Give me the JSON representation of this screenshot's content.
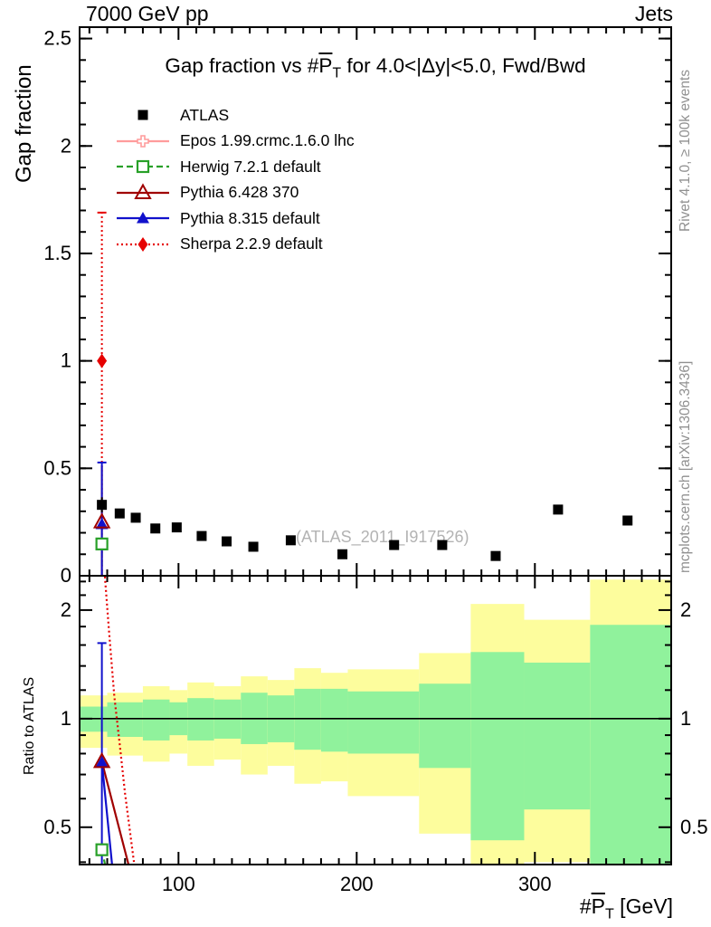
{
  "header": {
    "beam": "7000 GeV pp",
    "topic": "Jets"
  },
  "panel_title": {
    "pre": "Gap fraction vs #",
    "sym": "P",
    "sub": "T",
    "post": " for 4.0<|Δy|<5.0, Fwd/Bwd"
  },
  "x_label": {
    "pre": "#",
    "sym": "P",
    "sub": "T",
    "post": " [GeV]"
  },
  "y_label_top": "Gap fraction",
  "y_label_ratio": "Ratio to ATLAS",
  "side_text_top": "Rivet 4.1.0, ≥ 100k events",
  "side_text_bottom": "mcplots.cern.ch [arXiv:1306.3436]",
  "watermark": "(ATLAS_2011_I917526)",
  "colors": {
    "atlas": "#000000",
    "epos": "#ff9c9c",
    "herwig": "#28a028",
    "pythia6": "#a00000",
    "pythia8": "#1111cc",
    "sherpa": "#e60000",
    "band_yellow": "#fdfd9d",
    "band_green": "#90f29c",
    "frame": "#000000",
    "side_text": "#909090",
    "watermark": "#b3b3b3"
  },
  "legend": [
    {
      "label": "ATLAS",
      "color": "#000000",
      "line": "none",
      "marker": "square-filled"
    },
    {
      "label": "Epos 1.99.crmc.1.6.0 lhc",
      "color": "#ff9c9c",
      "line": "solid",
      "marker": "cross-open"
    },
    {
      "label": "Herwig 7.2.1 default",
      "color": "#28a028",
      "line": "dashed",
      "marker": "square-open"
    },
    {
      "label": "Pythia 6.428 370",
      "color": "#a00000",
      "line": "solid",
      "marker": "triangle-open"
    },
    {
      "label": "Pythia 8.315 default",
      "color": "#1111cc",
      "line": "solid",
      "marker": "triangle-filled"
    },
    {
      "label": "Sherpa 2.2.9 default",
      "color": "#e60000",
      "line": "dotted",
      "marker": "diamond-filled"
    }
  ],
  "chart_data": {
    "type": "scatter",
    "title": "Gap fraction vs #PT for 4.0<|dy|<5.0, Fwd/Bwd",
    "xlabel": "#PT [GeV]",
    "x_axis": {
      "lim": [
        44.5,
        376.5
      ],
      "major": [
        {
          "v": 100,
          "label": "100"
        },
        {
          "v": 200,
          "label": "200"
        },
        {
          "v": 300,
          "label": "300"
        }
      ],
      "minor_from": 50,
      "minor_to": 370,
      "minor_step": 10
    },
    "main_panel": {
      "ylabel": "Gap fraction",
      "scale": "linear",
      "lim": [
        0,
        2.553
      ],
      "major": [
        {
          "v": 0,
          "label": "0"
        },
        {
          "v": 0.5,
          "label": "0.5"
        },
        {
          "v": 1,
          "label": "1"
        },
        {
          "v": 1.5,
          "label": "1.5"
        },
        {
          "v": 2,
          "label": "2"
        },
        {
          "v": 2.5,
          "label": "2.5"
        }
      ],
      "minor_step": 0.1
    },
    "ratio_panel": {
      "ylabel": "Ratio to ATLAS",
      "scale": "log2",
      "lim_top": 2.49,
      "lim_bottom": 0.394,
      "major": [
        {
          "v": 0.5,
          "label": "0.5"
        },
        {
          "v": 1,
          "label": "1"
        },
        {
          "v": 2,
          "label": "2"
        }
      ],
      "minor": [
        0.4,
        0.6,
        0.7,
        0.8,
        0.9,
        1.2,
        1.4,
        1.6,
        1.8,
        2.2,
        2.4
      ],
      "reference_line": 1
    },
    "atlas_points": [
      [
        57,
        0.33
      ],
      [
        67,
        0.29
      ],
      [
        76,
        0.27
      ],
      [
        87,
        0.22
      ],
      [
        99,
        0.225
      ],
      [
        113,
        0.185
      ],
      [
        127,
        0.16
      ],
      [
        142,
        0.135
      ],
      [
        163,
        0.165
      ],
      [
        192,
        0.1
      ],
      [
        221,
        0.143
      ],
      [
        248,
        0.143
      ],
      [
        278,
        0.092
      ],
      [
        313,
        0.308
      ],
      [
        352,
        0.257
      ]
    ],
    "atlas_first_err": [
      57,
      0.295,
      0.365
    ],
    "series": {
      "sherpa": {
        "color": "#e60000",
        "linestyle": "dotted",
        "top": {
          "marker": [
            57,
            1.0
          ],
          "err": [
            57,
            0.0,
            1.69
          ]
        },
        "ratio": {
          "line": [
            [
              58.5,
              2.55
            ],
            [
              61,
              1.75
            ],
            [
              64,
              1.15
            ],
            [
              67,
              0.85
            ],
            [
              70,
              0.62
            ],
            [
              75,
              0.4
            ],
            [
              77,
              0.34
            ]
          ]
        }
      },
      "pythia8": {
        "color": "#1111cc",
        "linestyle": "solid",
        "top": {
          "marker": [
            57,
            0.24
          ],
          "err": [
            57,
            0.0,
            0.527
          ]
        },
        "ratio": {
          "marker": [
            57,
            0.757
          ],
          "err": [
            57,
            0.35,
            1.62
          ],
          "line": [
            [
              57,
              0.757
            ],
            [
              63.5,
              0.36
            ]
          ]
        }
      },
      "pythia6": {
        "color": "#a00000",
        "linestyle": "solid",
        "top": {
          "marker": [
            57,
            0.25
          ],
          "err": [
            57,
            0.0,
            0.51
          ]
        },
        "ratio": {
          "marker": [
            57,
            0.76
          ],
          "line": [
            [
              57,
              0.76
            ],
            [
              74,
              0.36
            ]
          ]
        }
      },
      "herwig": {
        "color": "#28a028",
        "linestyle": "dashed",
        "top": {
          "marker": [
            57,
            0.148
          ],
          "err": [
            57,
            0.0,
            0.148
          ]
        },
        "ratio": {
          "marker": [
            57,
            0.433
          ],
          "line": [
            [
              57,
              0.433
            ],
            [
              60.5,
              0.36
            ]
          ]
        }
      }
    },
    "ratio_bands": [
      [
        45,
        60,
        0.83,
        1.16,
        0.92,
        1.08
      ],
      [
        60,
        80,
        0.79,
        1.18,
        0.89,
        1.11
      ],
      [
        80,
        95,
        0.76,
        1.23,
        0.87,
        1.13
      ],
      [
        95,
        105,
        0.8,
        1.2,
        0.9,
        1.11
      ],
      [
        105,
        120,
        0.74,
        1.26,
        0.87,
        1.14
      ],
      [
        120,
        135,
        0.77,
        1.23,
        0.88,
        1.13
      ],
      [
        135,
        150,
        0.7,
        1.31,
        0.85,
        1.18
      ],
      [
        150,
        165,
        0.74,
        1.28,
        0.86,
        1.16
      ],
      [
        165,
        180,
        0.66,
        1.38,
        0.82,
        1.21
      ],
      [
        180,
        195,
        0.67,
        1.34,
        0.81,
        1.21
      ],
      [
        195,
        235,
        0.61,
        1.37,
        0.8,
        1.19
      ],
      [
        235,
        264,
        0.48,
        1.52,
        0.73,
        1.25
      ],
      [
        264,
        294,
        0.33,
        2.08,
        0.46,
        1.53
      ],
      [
        294,
        331,
        0.4,
        1.88,
        0.56,
        1.43
      ],
      [
        331,
        380,
        0.33,
        2.43,
        0.33,
        1.82
      ]
    ]
  }
}
